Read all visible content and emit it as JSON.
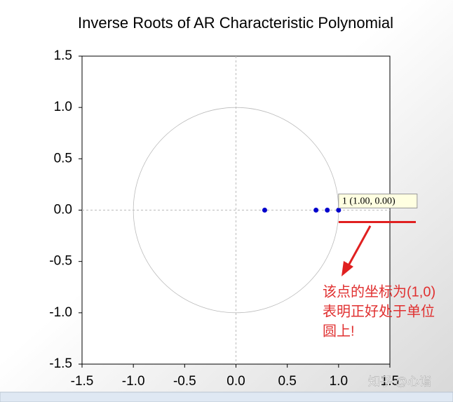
{
  "chart_data": {
    "type": "scatter",
    "title": "Inverse Roots of AR Characteristic Polynomial",
    "x": [
      0.28,
      0.78,
      0.89,
      1.0
    ],
    "values": [
      0,
      0,
      0,
      0
    ],
    "color": "#0000cc",
    "xlim": [
      -1.5,
      1.5
    ],
    "ylim": [
      -1.5,
      1.5
    ],
    "xticks": [
      -1.5,
      {
        "value": -1,
        "label": "-1.0"
      },
      -0.5,
      {
        "value": 0,
        "label": "0.0"
      },
      0.5,
      {
        "value": 1,
        "label": "1.0"
      },
      1.5
    ],
    "yticks": [
      1.5,
      {
        "value": 1,
        "label": "1.0"
      },
      0.5,
      {
        "value": 0,
        "label": "0.0"
      },
      -0.5,
      {
        "value": -1,
        "label": "-1.0"
      },
      -1.5
    ],
    "tooltip": "1  (1.00, 0.00)",
    "annotation": [
      "该点的坐标为(1,0)",
      "表明正好处于单位",
      "圆上!"
    ],
    "watermark": "知乎 @心诣"
  }
}
